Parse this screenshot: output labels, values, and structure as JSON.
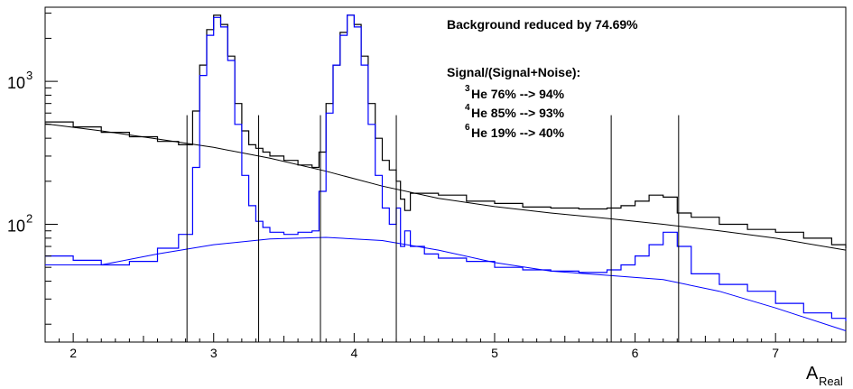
{
  "chart_data": {
    "type": "line",
    "title": "",
    "xlabel": "A",
    "xlabel_sub": "Real",
    "ylabel": "",
    "x_range": [
      1.8,
      7.5
    ],
    "y_range": [
      15,
      3300
    ],
    "y_scale": "log",
    "grid": false,
    "x_ticks": [
      "2",
      "3",
      "4",
      "5",
      "6",
      "7"
    ],
    "y_ticks": [
      {
        "value": 1000,
        "base": "10",
        "exp": "3"
      },
      {
        "value": 100,
        "base": "10",
        "exp": "2"
      }
    ],
    "cut_lines": [
      2.81,
      3.32,
      3.76,
      4.3,
      5.83,
      6.31
    ],
    "annotations": {
      "headline": "Background reduced by 74.69%",
      "ratio_title": "Signal/(Signal+Noise):",
      "rows": [
        {
          "sup": "3",
          "label": "He  76% --> 94%"
        },
        {
          "sup": "4",
          "label": "He  85% --> 93%"
        },
        {
          "sup": "6",
          "label": "He  19% --> 40%"
        }
      ]
    },
    "series": [
      {
        "color": "#000000",
        "style": "histogram",
        "x": [
          1.8,
          2.0,
          2.2,
          2.4,
          2.6,
          2.75,
          2.85,
          2.9,
          2.95,
          3.0,
          3.05,
          3.1,
          3.15,
          3.2,
          3.25,
          3.3,
          3.35,
          3.4,
          3.5,
          3.6,
          3.7,
          3.75,
          3.8,
          3.85,
          3.9,
          3.95,
          4.0,
          4.05,
          4.1,
          4.15,
          4.2,
          4.25,
          4.3,
          4.33,
          4.36,
          4.4,
          4.5,
          4.6,
          4.8,
          5.0,
          5.2,
          5.4,
          5.6,
          5.8,
          5.9,
          6.0,
          6.1,
          6.2,
          6.3,
          6.4,
          6.6,
          6.8,
          7.0,
          7.2,
          7.4,
          7.5
        ],
        "y": [
          520,
          480,
          440,
          410,
          380,
          360,
          620,
          1300,
          2300,
          2900,
          2500,
          1500,
          700,
          450,
          360,
          340,
          320,
          300,
          280,
          260,
          250,
          320,
          700,
          1300,
          2200,
          2900,
          2500,
          1500,
          700,
          400,
          280,
          240,
          200,
          150,
          125,
          165,
          165,
          160,
          145,
          140,
          132,
          130,
          128,
          130,
          135,
          145,
          160,
          155,
          120,
          112,
          100,
          92,
          88,
          80,
          72,
          68
        ]
      },
      {
        "color": "#000000",
        "style": "fit",
        "x": [
          1.8,
          2.2,
          2.6,
          3.0,
          3.4,
          3.8,
          4.2,
          4.6,
          5.0,
          5.4,
          5.8,
          6.2,
          6.6,
          7.0,
          7.5
        ],
        "y": [
          505,
          450,
          395,
          345,
          290,
          235,
          185,
          152,
          133,
          120,
          110,
          100,
          90,
          80,
          66
        ]
      },
      {
        "color": "#0000ff",
        "style": "histogram",
        "x": [
          1.8,
          2.0,
          2.2,
          2.4,
          2.6,
          2.75,
          2.85,
          2.9,
          2.95,
          3.0,
          3.05,
          3.1,
          3.15,
          3.2,
          3.25,
          3.3,
          3.35,
          3.4,
          3.5,
          3.6,
          3.7,
          3.75,
          3.8,
          3.85,
          3.9,
          3.95,
          4.0,
          4.05,
          4.1,
          4.15,
          4.2,
          4.25,
          4.3,
          4.33,
          4.36,
          4.4,
          4.5,
          4.6,
          4.8,
          5.0,
          5.2,
          5.4,
          5.6,
          5.8,
          5.9,
          6.0,
          6.1,
          6.2,
          6.3,
          6.4,
          6.6,
          6.8,
          7.0,
          7.2,
          7.4,
          7.5
        ],
        "y": [
          60,
          56,
          52,
          55,
          68,
          85,
          250,
          1100,
          2100,
          2800,
          2400,
          1400,
          500,
          220,
          135,
          105,
          95,
          88,
          85,
          88,
          90,
          170,
          600,
          1300,
          2100,
          2900,
          2400,
          1300,
          500,
          220,
          130,
          100,
          130,
          70,
          90,
          70,
          62,
          58,
          55,
          50,
          48,
          47,
          46,
          48,
          52,
          60,
          72,
          88,
          70,
          45,
          38,
          34,
          28,
          24,
          22,
          21
        ]
      },
      {
        "color": "#0000ff",
        "style": "fit",
        "x": [
          1.8,
          2.2,
          2.6,
          3.0,
          3.4,
          3.8,
          4.2,
          4.6,
          5.0,
          5.4,
          5.8,
          6.2,
          6.6,
          7.0,
          7.5
        ],
        "y": [
          52,
          52,
          62,
          72,
          79,
          81,
          77,
          66,
          54,
          47,
          44,
          41,
          34,
          26,
          18
        ]
      }
    ]
  }
}
